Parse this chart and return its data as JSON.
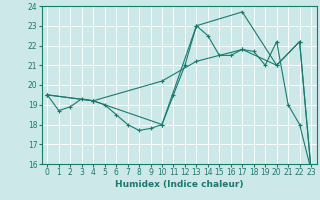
{
  "xlabel": "Humidex (Indice chaleur)",
  "xlim": [
    -0.5,
    23.5
  ],
  "ylim": [
    16,
    24
  ],
  "yticks": [
    16,
    17,
    18,
    19,
    20,
    21,
    22,
    23,
    24
  ],
  "xticks": [
    0,
    1,
    2,
    3,
    4,
    5,
    6,
    7,
    8,
    9,
    10,
    11,
    12,
    13,
    14,
    15,
    16,
    17,
    18,
    19,
    20,
    21,
    22,
    23
  ],
  "line_color": "#1a7a6e",
  "bg_color": "#cce8e8",
  "grid_color": "#ffffff",
  "line1": {
    "x": [
      0,
      1,
      2,
      3,
      4,
      5,
      6,
      7,
      8,
      9,
      10,
      11,
      12,
      13,
      14,
      15,
      16,
      17,
      18,
      19,
      20,
      21,
      22,
      23
    ],
    "y": [
      19.5,
      18.7,
      18.9,
      19.3,
      19.2,
      19.0,
      18.5,
      18.0,
      17.7,
      17.8,
      18.0,
      19.5,
      21.0,
      23.0,
      22.5,
      21.5,
      21.5,
      21.8,
      21.7,
      21.0,
      22.2,
      19.0,
      18.0,
      15.7
    ]
  },
  "line2": {
    "x": [
      0,
      4,
      10,
      13,
      17,
      20,
      22,
      23
    ],
    "y": [
      19.5,
      19.2,
      18.0,
      23.0,
      23.7,
      21.0,
      22.2,
      15.7
    ]
  },
  "line3": {
    "x": [
      0,
      4,
      10,
      13,
      17,
      20,
      22,
      23
    ],
    "y": [
      19.5,
      19.2,
      20.2,
      21.2,
      21.8,
      21.0,
      22.2,
      15.7
    ]
  },
  "tick_fontsize": 5.5,
  "xlabel_fontsize": 6.5,
  "marker_size": 2.5,
  "linewidth": 0.8
}
